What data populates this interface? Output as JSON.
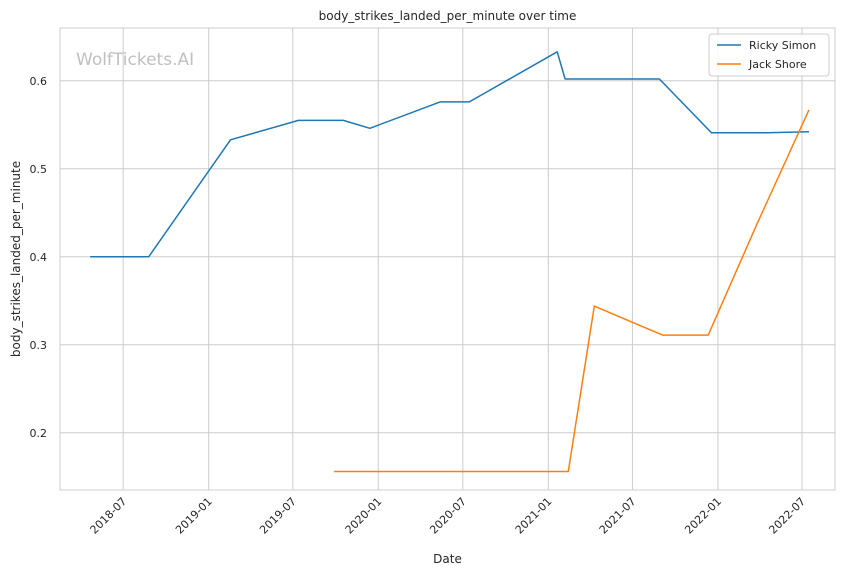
{
  "chart_data": {
    "type": "line",
    "title": "body_strikes_landed_per_minute over time",
    "xlabel": "Date",
    "ylabel": "body_strikes_landed_per_minute",
    "watermark": "WolfTickets.AI",
    "x_type": "date",
    "xlim": [
      "2018-02-15",
      "2022-09-10"
    ],
    "ylim": [
      0.135,
      0.66
    ],
    "grid": true,
    "legend_position": "top-right",
    "x_ticks": [
      "2018-07",
      "2019-01",
      "2019-07",
      "2020-01",
      "2020-07",
      "2021-01",
      "2021-07",
      "2022-01",
      "2022-07"
    ],
    "y_ticks": [
      0.2,
      0.3,
      0.4,
      0.5,
      0.6
    ],
    "series": [
      {
        "name": "Ricky Simon",
        "color": "#1f77b4",
        "points": [
          {
            "x": "2018-04-21",
            "y": 0.4
          },
          {
            "x": "2018-08-25",
            "y": 0.4
          },
          {
            "x": "2019-02-17",
            "y": 0.533
          },
          {
            "x": "2019-07-13",
            "y": 0.555
          },
          {
            "x": "2019-10-18",
            "y": 0.555
          },
          {
            "x": "2019-12-14",
            "y": 0.546
          },
          {
            "x": "2020-05-13",
            "y": 0.576
          },
          {
            "x": "2020-07-15",
            "y": 0.576
          },
          {
            "x": "2021-01-20",
            "y": 0.633
          },
          {
            "x": "2021-02-06",
            "y": 0.602
          },
          {
            "x": "2021-08-28",
            "y": 0.602
          },
          {
            "x": "2021-12-18",
            "y": 0.541
          },
          {
            "x": "2022-04-16",
            "y": 0.541
          },
          {
            "x": "2022-07-16",
            "y": 0.542
          }
        ]
      },
      {
        "name": "Jack Shore",
        "color": "#ff7f0e",
        "points": [
          {
            "x": "2019-09-28",
            "y": 0.156
          },
          {
            "x": "2021-02-13",
            "y": 0.156
          },
          {
            "x": "2021-04-10",
            "y": 0.344
          },
          {
            "x": "2021-09-04",
            "y": 0.311
          },
          {
            "x": "2021-12-11",
            "y": 0.311
          },
          {
            "x": "2022-03-26",
            "y": 0.437
          },
          {
            "x": "2022-07-16",
            "y": 0.567
          }
        ]
      }
    ]
  }
}
